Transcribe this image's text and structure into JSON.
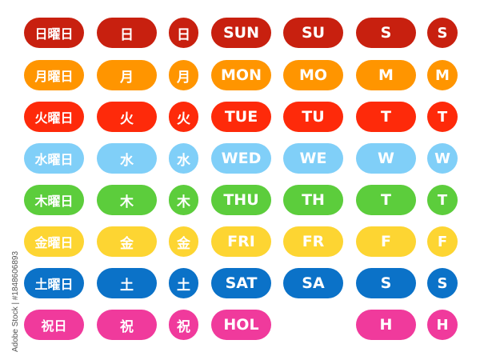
{
  "rows": [
    {
      "day": "sunday",
      "color": "#c8200f",
      "labels": [
        "日曜日",
        "日",
        "日",
        "SUN",
        "SU",
        "S",
        "S"
      ]
    },
    {
      "day": "monday",
      "color": "#ff9500",
      "labels": [
        "月曜日",
        "月",
        "月",
        "MON",
        "MO",
        "M",
        "M"
      ]
    },
    {
      "day": "tuesday",
      "color": "#fe2a0a",
      "labels": [
        "火曜日",
        "火",
        "火",
        "TUE",
        "TU",
        "T",
        "T"
      ]
    },
    {
      "day": "wednesday",
      "color": "#80cff8",
      "labels": [
        "水曜日",
        "水",
        "水",
        "WED",
        "WE",
        "W",
        "W"
      ]
    },
    {
      "day": "thursday",
      "color": "#5ccd3c",
      "labels": [
        "木曜日",
        "木",
        "木",
        "THU",
        "TH",
        "T",
        "T"
      ]
    },
    {
      "day": "friday",
      "color": "#fdd532",
      "labels": [
        "金曜日",
        "金",
        "金",
        "FRI",
        "FR",
        "F",
        "F"
      ]
    },
    {
      "day": "saturday",
      "color": "#0b72c8",
      "labels": [
        "土曜日",
        "土",
        "土",
        "SAT",
        "SA",
        "S",
        "S"
      ]
    },
    {
      "day": "holiday",
      "color": "#f03a9c",
      "labels": [
        "祝日",
        "祝",
        "祝",
        "HOL",
        null,
        "H",
        "H"
      ]
    }
  ],
  "watermark": "Adobe Stock | #1848606893"
}
